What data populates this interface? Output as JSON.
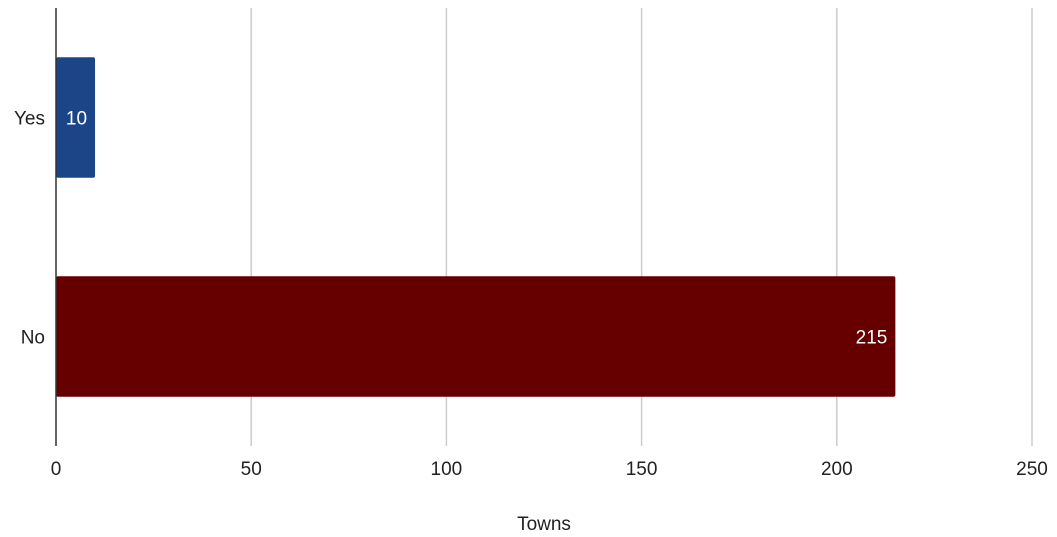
{
  "chart_data": {
    "type": "bar",
    "orientation": "horizontal",
    "categories": [
      "Yes",
      "No"
    ],
    "values": [
      10,
      215
    ],
    "value_labels": [
      "10",
      "215"
    ],
    "colors": [
      "#1c4587",
      "#660000"
    ],
    "xlabel": "Towns",
    "ylabel": "",
    "xlim": [
      0,
      250
    ],
    "xticks": [
      "0",
      "50",
      "100",
      "150",
      "200",
      "250"
    ],
    "grid": "vertical"
  }
}
